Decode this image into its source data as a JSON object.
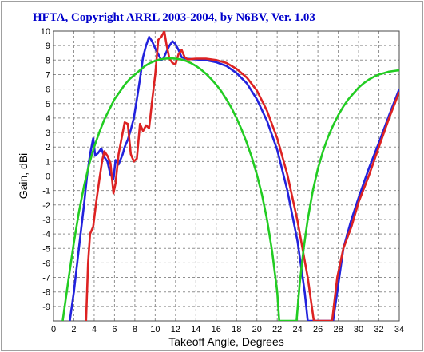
{
  "chart_data": {
    "type": "line",
    "title": "HFTA, Copyright ARRL 2003-2004, by N6BV, Ver. 1.03",
    "xlabel": "Takeoff Angle, Degrees",
    "ylabel": "Gain, dBi",
    "xlim": [
      0,
      34
    ],
    "ylim": [
      -10,
      10
    ],
    "x_ticks": [
      0,
      2,
      4,
      6,
      8,
      10,
      12,
      14,
      16,
      18,
      20,
      22,
      24,
      26,
      28,
      30,
      32,
      34
    ],
    "y_ticks": [
      10,
      9,
      8,
      7,
      6,
      5,
      4,
      3,
      2,
      1,
      0,
      -1,
      -2,
      -3,
      -4,
      -5,
      -6,
      -7,
      -8,
      -9
    ],
    "grid": true,
    "colors": {
      "title": "#0000cc",
      "plot_border": "#4a4a4a",
      "grid": "#909090"
    },
    "series": [
      {
        "color": "#2222dd",
        "points": [
          [
            1.6,
            -10
          ],
          [
            2.0,
            -8
          ],
          [
            2.5,
            -5
          ],
          [
            3.0,
            -2
          ],
          [
            3.3,
            0
          ],
          [
            3.6,
            1.5
          ],
          [
            3.9,
            2.6
          ],
          [
            4.1,
            1.4
          ],
          [
            4.4,
            1.6
          ],
          [
            4.7,
            1.9
          ],
          [
            5.0,
            1.3
          ],
          [
            5.3,
            1.0
          ],
          [
            5.6,
            0.1
          ],
          [
            5.9,
            -0.2
          ],
          [
            6.1,
            1.1
          ],
          [
            6.4,
            0.8
          ],
          [
            6.8,
            1.5
          ],
          [
            7.0,
            2.0
          ],
          [
            7.3,
            2.5
          ],
          [
            7.6,
            3.2
          ],
          [
            7.9,
            4.0
          ],
          [
            8.2,
            5.3
          ],
          [
            8.5,
            6.7
          ],
          [
            8.8,
            8.2
          ],
          [
            9.1,
            9.0
          ],
          [
            9.4,
            9.6
          ],
          [
            9.7,
            9.3
          ],
          [
            10.0,
            8.8
          ],
          [
            10.3,
            8.4
          ],
          [
            10.6,
            8.0
          ],
          [
            10.8,
            8.1
          ],
          [
            11.0,
            8.4
          ],
          [
            11.2,
            8.7
          ],
          [
            11.4,
            9.0
          ],
          [
            11.7,
            9.3
          ],
          [
            12.0,
            9.1
          ],
          [
            12.3,
            8.7
          ],
          [
            12.6,
            8.2
          ],
          [
            13.0,
            8.1
          ],
          [
            14.0,
            8.05
          ],
          [
            15.0,
            8.0
          ],
          [
            16.0,
            7.85
          ],
          [
            17.0,
            7.6
          ],
          [
            18.0,
            7.1
          ],
          [
            19.0,
            6.4
          ],
          [
            20.0,
            5.3
          ],
          [
            21.0,
            3.8
          ],
          [
            22.0,
            1.8
          ],
          [
            23.0,
            -1.0
          ],
          [
            24.0,
            -4.5
          ],
          [
            24.7,
            -8
          ],
          [
            25.0,
            -10
          ],
          [
            27.5,
            -10
          ],
          [
            27.9,
            -8
          ],
          [
            28.5,
            -5
          ],
          [
            29.3,
            -3
          ],
          [
            30.0,
            -1.5
          ],
          [
            31.0,
            0.5
          ],
          [
            32.0,
            2.3
          ],
          [
            33.0,
            4.2
          ],
          [
            34.0,
            6.0
          ]
        ]
      },
      {
        "color": "#dd2222",
        "points": [
          [
            3.2,
            -10
          ],
          [
            3.4,
            -6
          ],
          [
            3.6,
            -4
          ],
          [
            3.9,
            -3.5
          ],
          [
            4.2,
            -1.8
          ],
          [
            4.5,
            -0.3
          ],
          [
            4.8,
            1.1
          ],
          [
            5.0,
            1.7
          ],
          [
            5.3,
            1.4
          ],
          [
            5.6,
            0.9
          ],
          [
            5.9,
            -1.2
          ],
          [
            6.1,
            -0.5
          ],
          [
            6.4,
            1.5
          ],
          [
            6.7,
            2.6
          ],
          [
            7.0,
            3.7
          ],
          [
            7.3,
            3.6
          ],
          [
            7.6,
            1.5
          ],
          [
            7.9,
            1.0
          ],
          [
            8.2,
            1.2
          ],
          [
            8.5,
            3.6
          ],
          [
            8.8,
            3.1
          ],
          [
            9.1,
            3.5
          ],
          [
            9.4,
            3.3
          ],
          [
            9.7,
            5.2
          ],
          [
            10.0,
            7.0
          ],
          [
            10.3,
            9.4
          ],
          [
            10.6,
            9.6
          ],
          [
            10.9,
            10.0
          ],
          [
            11.1,
            9.1
          ],
          [
            11.4,
            8.1
          ],
          [
            11.7,
            7.8
          ],
          [
            12.0,
            7.7
          ],
          [
            12.3,
            8.4
          ],
          [
            12.6,
            8.7
          ],
          [
            12.9,
            8.2
          ],
          [
            13.2,
            8.05
          ],
          [
            14.0,
            8.1
          ],
          [
            15.0,
            8.1
          ],
          [
            16.0,
            8.0
          ],
          [
            17.0,
            7.8
          ],
          [
            18.0,
            7.4
          ],
          [
            19.0,
            6.8
          ],
          [
            20.0,
            5.9
          ],
          [
            21.0,
            4.5
          ],
          [
            22.0,
            2.6
          ],
          [
            23.0,
            0.1
          ],
          [
            24.0,
            -3.1
          ],
          [
            25.0,
            -7.0
          ],
          [
            25.6,
            -10
          ],
          [
            27.4,
            -10
          ],
          [
            27.9,
            -7
          ],
          [
            28.5,
            -5
          ],
          [
            29.3,
            -3.5
          ],
          [
            30.0,
            -1.8
          ],
          [
            31.0,
            0.0
          ],
          [
            32.0,
            2.0
          ],
          [
            33.0,
            4.0
          ],
          [
            34.0,
            5.8
          ]
        ]
      },
      {
        "color": "#22cc22",
        "points": [
          [
            0.9,
            -10
          ],
          [
            1.5,
            -7
          ],
          [
            2.0,
            -4.6
          ],
          [
            2.5,
            -2.5
          ],
          [
            3.0,
            -0.7
          ],
          [
            3.5,
            0.8
          ],
          [
            4.0,
            2.0
          ],
          [
            4.5,
            3.0
          ],
          [
            5.0,
            3.9
          ],
          [
            5.5,
            4.6
          ],
          [
            6.0,
            5.3
          ],
          [
            6.5,
            5.8
          ],
          [
            7.0,
            6.3
          ],
          [
            7.5,
            6.7
          ],
          [
            8.0,
            7.0
          ],
          [
            8.5,
            7.3
          ],
          [
            9.0,
            7.6
          ],
          [
            9.5,
            7.8
          ],
          [
            10.0,
            7.95
          ],
          [
            10.5,
            8.05
          ],
          [
            11.0,
            8.1
          ],
          [
            11.5,
            8.12
          ],
          [
            12.0,
            8.1
          ],
          [
            12.5,
            8.05
          ],
          [
            13.0,
            7.95
          ],
          [
            13.5,
            7.8
          ],
          [
            14.0,
            7.6
          ],
          [
            14.5,
            7.35
          ],
          [
            15.0,
            7.05
          ],
          [
            15.5,
            6.7
          ],
          [
            16.0,
            6.3
          ],
          [
            16.5,
            5.85
          ],
          [
            17.0,
            5.3
          ],
          [
            17.5,
            4.7
          ],
          [
            18.0,
            4.0
          ],
          [
            18.5,
            3.2
          ],
          [
            19.0,
            2.3
          ],
          [
            19.5,
            1.3
          ],
          [
            20.0,
            0.1
          ],
          [
            20.5,
            -1.3
          ],
          [
            21.0,
            -3.0
          ],
          [
            21.5,
            -5.2
          ],
          [
            22.0,
            -8.0
          ],
          [
            22.2,
            -10
          ],
          [
            23.9,
            -10
          ],
          [
            24.2,
            -7.5
          ],
          [
            24.6,
            -5
          ],
          [
            25.0,
            -3.0
          ],
          [
            25.5,
            -1.0
          ],
          [
            26.0,
            0.5
          ],
          [
            26.5,
            1.7
          ],
          [
            27.0,
            2.7
          ],
          [
            27.5,
            3.5
          ],
          [
            28.0,
            4.2
          ],
          [
            28.5,
            4.8
          ],
          [
            29.0,
            5.3
          ],
          [
            29.5,
            5.7
          ],
          [
            30.0,
            6.1
          ],
          [
            30.5,
            6.4
          ],
          [
            31.0,
            6.65
          ],
          [
            31.5,
            6.85
          ],
          [
            32.0,
            7.0
          ],
          [
            32.5,
            7.1
          ],
          [
            33.0,
            7.2
          ],
          [
            33.5,
            7.25
          ],
          [
            34.0,
            7.3
          ]
        ]
      }
    ]
  }
}
